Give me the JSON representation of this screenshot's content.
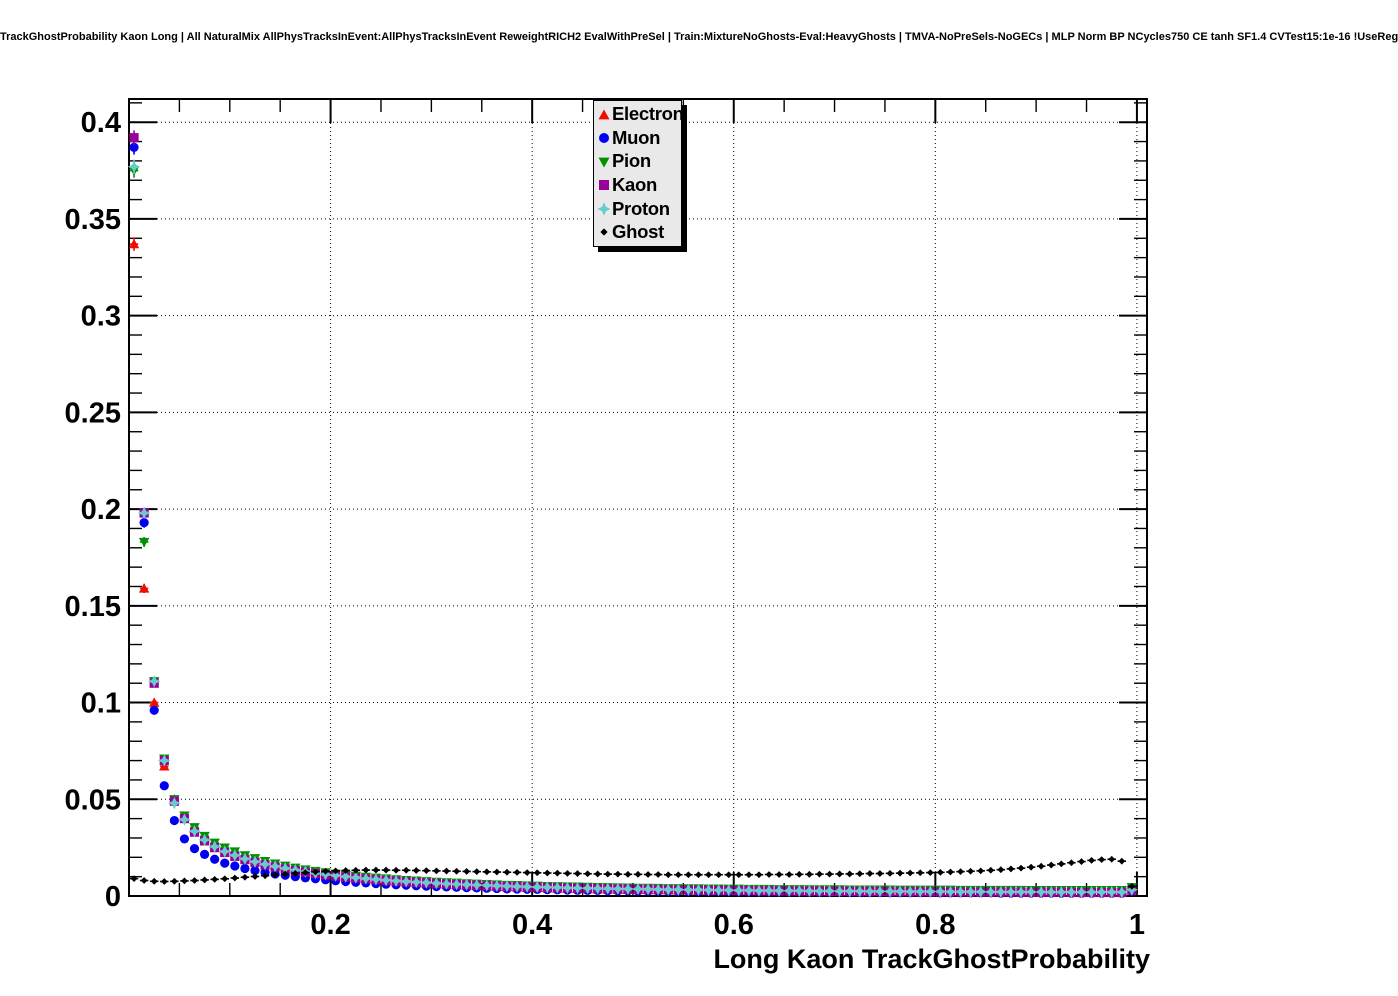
{
  "chart_data": {
    "type": "scatter",
    "title": "TrackGhostProbability Kaon Long | All NaturalMix AllPhysTracksInEvent:AllPhysTracksInEvent ReweightRICH2 EvalWithPreSel | Train:MixtureNoGhosts-Eval:HeavyGhosts | TMVA-NoPreSels-NoGECs | MLP Norm BP NCycles750 CE tanh SF1.4 CVTest15:1e-16 !UseReg",
    "xlabel": "Long Kaon TrackGhostProbability",
    "ylabel": "",
    "xlim": [
      0,
      1.01
    ],
    "ylim": [
      0,
      0.412
    ],
    "grid": "dotted",
    "legend_position": "top-center",
    "x_ticks": [
      0.2,
      0.4,
      0.6,
      0.8,
      1.0
    ],
    "x_ticklabels": [
      "0.2",
      "0.4",
      "0.6",
      "0.8",
      "1"
    ],
    "y_ticks": [
      0,
      0.05,
      0.1,
      0.15,
      0.2,
      0.25,
      0.3,
      0.35,
      0.4
    ],
    "y_ticklabels": [
      "0",
      "0.05",
      "0.1",
      "0.15",
      "0.2",
      "0.25",
      "0.3",
      "0.35",
      "0.4"
    ],
    "x_minor_step": 0.05,
    "y_minor_step": 0.01,
    "bin_width": 0.01,
    "x_start": 0.005,
    "x_step": 0.01,
    "series": [
      {
        "name": "Electron",
        "color": "#f10c00",
        "marker": "triangle-up",
        "values": [
          0.337,
          0.159,
          0.1,
          0.067,
          0.05,
          0.041,
          0.035,
          0.03,
          0.027,
          0.0245,
          0.0225,
          0.0205,
          0.019,
          0.0175,
          0.016,
          0.015,
          0.014,
          0.013,
          0.0122,
          0.0115,
          0.0108,
          0.0102,
          0.0096,
          0.0091,
          0.0086,
          0.0081,
          0.0077,
          0.0073,
          0.0069,
          0.0066,
          0.0063,
          0.006,
          0.0057,
          0.0055,
          0.0052,
          0.005,
          0.0048,
          0.0046,
          0.0045,
          0.0043,
          0.0042,
          0.004,
          0.0039,
          0.0038,
          0.0037,
          0.0036,
          0.0035,
          0.0034,
          0.0033,
          0.0032,
          0.0032,
          0.0031,
          0.003,
          0.003,
          0.0029,
          0.0029,
          0.0028,
          0.0028,
          0.0027,
          0.0027,
          0.0026,
          0.0026,
          0.0026,
          0.0025,
          0.0025,
          0.0025,
          0.0024,
          0.0024,
          0.0024,
          0.0023,
          0.0023,
          0.0023,
          0.0023,
          0.0022,
          0.0022,
          0.0022,
          0.0022,
          0.0021,
          0.0021,
          0.0021,
          0.0021,
          0.0021,
          0.002,
          0.002,
          0.002,
          0.002,
          0.002,
          0.002,
          0.0019,
          0.0019,
          0.0019,
          0.0019,
          0.0019,
          0.0019,
          0.0018,
          0.0018,
          0.0018,
          0.0018,
          0.0018,
          0.003
        ]
      },
      {
        "name": "Muon",
        "color": "#0000f1",
        "marker": "circle",
        "values": [
          0.387,
          0.193,
          0.096,
          0.057,
          0.039,
          0.0295,
          0.0245,
          0.0215,
          0.019,
          0.017,
          0.0155,
          0.0142,
          0.0132,
          0.0122,
          0.0114,
          0.0107,
          0.01,
          0.0094,
          0.0089,
          0.0084,
          0.0079,
          0.0075,
          0.0071,
          0.0068,
          0.0064,
          0.0061,
          0.0058,
          0.0056,
          0.0053,
          0.0051,
          0.0049,
          0.0047,
          0.0045,
          0.0043,
          0.0042,
          0.004,
          0.0039,
          0.0037,
          0.0036,
          0.0035,
          0.0034,
          0.0033,
          0.0032,
          0.0031,
          0.003,
          0.0029,
          0.0029,
          0.0028,
          0.0027,
          0.0027,
          0.0026,
          0.0026,
          0.0025,
          0.0025,
          0.0024,
          0.0024,
          0.0023,
          0.0023,
          0.0022,
          0.0022,
          0.0022,
          0.0021,
          0.0021,
          0.0021,
          0.002,
          0.002,
          0.002,
          0.0019,
          0.0019,
          0.0019,
          0.0019,
          0.0018,
          0.0018,
          0.0018,
          0.0018,
          0.0017,
          0.0017,
          0.0017,
          0.0017,
          0.0017,
          0.0016,
          0.0016,
          0.0016,
          0.0016,
          0.0016,
          0.0016,
          0.0015,
          0.0015,
          0.0015,
          0.0015,
          0.0015,
          0.0015,
          0.0014,
          0.0014,
          0.0014,
          0.0014,
          0.0014,
          0.0014,
          0.0014,
          0.0025
        ]
      },
      {
        "name": "Pion",
        "color": "#009000",
        "marker": "triangle-down",
        "values": [
          0.375,
          0.183,
          0.111,
          0.071,
          0.05,
          0.0415,
          0.0355,
          0.031,
          0.0275,
          0.025,
          0.023,
          0.021,
          0.0195,
          0.018,
          0.0167,
          0.0156,
          0.0146,
          0.0137,
          0.0129,
          0.0122,
          0.0115,
          0.0109,
          0.0104,
          0.0099,
          0.0094,
          0.009,
          0.0086,
          0.0082,
          0.0079,
          0.0076,
          0.0073,
          0.007,
          0.0068,
          0.0065,
          0.0063,
          0.0061,
          0.0059,
          0.0057,
          0.0056,
          0.0054,
          0.0053,
          0.0051,
          0.005,
          0.0049,
          0.0048,
          0.0047,
          0.0046,
          0.0045,
          0.0044,
          0.0043,
          0.0042,
          0.0042,
          0.0041,
          0.004,
          0.004,
          0.0039,
          0.0039,
          0.0038,
          0.0038,
          0.0037,
          0.0037,
          0.0036,
          0.0036,
          0.0036,
          0.0035,
          0.0035,
          0.0035,
          0.0034,
          0.0034,
          0.0034,
          0.0034,
          0.0033,
          0.0033,
          0.0033,
          0.0033,
          0.0033,
          0.0032,
          0.0032,
          0.0032,
          0.0032,
          0.0032,
          0.0032,
          0.0031,
          0.0031,
          0.0031,
          0.0031,
          0.0031,
          0.0031,
          0.0031,
          0.003,
          0.003,
          0.003,
          0.003,
          0.003,
          0.003,
          0.003,
          0.003,
          0.003,
          0.003,
          0.0045
        ]
      },
      {
        "name": "Kaon",
        "color": "#990099",
        "marker": "square",
        "values": [
          0.392,
          0.198,
          0.11,
          0.07,
          0.049,
          0.04,
          0.033,
          0.0285,
          0.025,
          0.0225,
          0.0205,
          0.0188,
          0.0174,
          0.0161,
          0.015,
          0.014,
          0.0131,
          0.0123,
          0.0116,
          0.0109,
          0.0103,
          0.0098,
          0.0093,
          0.0088,
          0.0084,
          0.008,
          0.0076,
          0.0073,
          0.007,
          0.0067,
          0.0064,
          0.0061,
          0.0059,
          0.0057,
          0.0055,
          0.0053,
          0.0051,
          0.0049,
          0.0048,
          0.0046,
          0.0045,
          0.0043,
          0.0042,
          0.0041,
          0.004,
          0.0039,
          0.0038,
          0.0037,
          0.0036,
          0.0035,
          0.0034,
          0.0033,
          0.0033,
          0.0032,
          0.0031,
          0.0031,
          0.003,
          0.003,
          0.0029,
          0.0029,
          0.0028,
          0.0028,
          0.0027,
          0.0027,
          0.0026,
          0.0026,
          0.0025,
          0.0025,
          0.0025,
          0.0024,
          0.0024,
          0.0024,
          0.0023,
          0.0023,
          0.0023,
          0.0022,
          0.0022,
          0.0022,
          0.0022,
          0.0021,
          0.0021,
          0.0021,
          0.0021,
          0.002,
          0.002,
          0.002,
          0.002,
          0.002,
          0.0019,
          0.0019,
          0.0019,
          0.0019,
          0.0019,
          0.0019,
          0.0018,
          0.0018,
          0.0018,
          0.0018,
          0.0018,
          0.003
        ]
      },
      {
        "name": "Proton",
        "color": "#66cccc",
        "marker": "star4",
        "values": [
          0.377,
          0.198,
          0.111,
          0.07,
          0.048,
          0.0395,
          0.0335,
          0.029,
          0.0255,
          0.023,
          0.021,
          0.0192,
          0.0177,
          0.0164,
          0.0153,
          0.0143,
          0.0134,
          0.0126,
          0.0118,
          0.0112,
          0.0106,
          0.01,
          0.0095,
          0.009,
          0.0086,
          0.0082,
          0.0078,
          0.0075,
          0.0072,
          0.0069,
          0.0066,
          0.0063,
          0.0061,
          0.0059,
          0.0057,
          0.0055,
          0.0053,
          0.0051,
          0.0049,
          0.0048,
          0.0046,
          0.0045,
          0.0044,
          0.0042,
          0.0041,
          0.004,
          0.0039,
          0.0038,
          0.0037,
          0.0036,
          0.0036,
          0.0035,
          0.0034,
          0.0033,
          0.0033,
          0.0032,
          0.0032,
          0.0031,
          0.003,
          0.003,
          0.0029,
          0.0029,
          0.0028,
          0.0028,
          0.0028,
          0.0027,
          0.0027,
          0.0026,
          0.0026,
          0.0026,
          0.0025,
          0.0025,
          0.0025,
          0.0024,
          0.0024,
          0.0024,
          0.0024,
          0.0023,
          0.0023,
          0.0023,
          0.0023,
          0.0022,
          0.0022,
          0.0022,
          0.0022,
          0.0021,
          0.0021,
          0.0021,
          0.0021,
          0.0021,
          0.0021,
          0.002,
          0.002,
          0.002,
          0.002,
          0.002,
          0.002,
          0.002,
          0.002,
          0.0032
        ]
      },
      {
        "name": "Ghost",
        "color": "#000000",
        "marker": "diamond",
        "values": [
          0.009,
          0.008,
          0.0076,
          0.0075,
          0.0076,
          0.0078,
          0.008,
          0.0083,
          0.0086,
          0.0089,
          0.0093,
          0.0097,
          0.0101,
          0.0105,
          0.0109,
          0.0113,
          0.0117,
          0.0121,
          0.0125,
          0.0128,
          0.013,
          0.0132,
          0.0133,
          0.0134,
          0.0134,
          0.0134,
          0.0133,
          0.0133,
          0.0132,
          0.0131,
          0.013,
          0.0129,
          0.0128,
          0.0127,
          0.0126,
          0.0125,
          0.0124,
          0.0123,
          0.0122,
          0.0121,
          0.012,
          0.0119,
          0.0118,
          0.0117,
          0.0116,
          0.0115,
          0.0114,
          0.0113,
          0.0113,
          0.0112,
          0.0112,
          0.0111,
          0.0111,
          0.011,
          0.011,
          0.011,
          0.011,
          0.011,
          0.011,
          0.011,
          0.011,
          0.011,
          0.011,
          0.0111,
          0.0111,
          0.0111,
          0.0112,
          0.0112,
          0.0113,
          0.0113,
          0.0114,
          0.0114,
          0.0115,
          0.0116,
          0.0116,
          0.0117,
          0.0118,
          0.0119,
          0.012,
          0.0121,
          0.0122,
          0.0124,
          0.0126,
          0.0128,
          0.013,
          0.0133,
          0.0136,
          0.014,
          0.0144,
          0.0149,
          0.0154,
          0.016,
          0.0166,
          0.0172,
          0.0178,
          0.0184,
          0.0188,
          0.019,
          0.018,
          0.005
        ]
      }
    ]
  }
}
